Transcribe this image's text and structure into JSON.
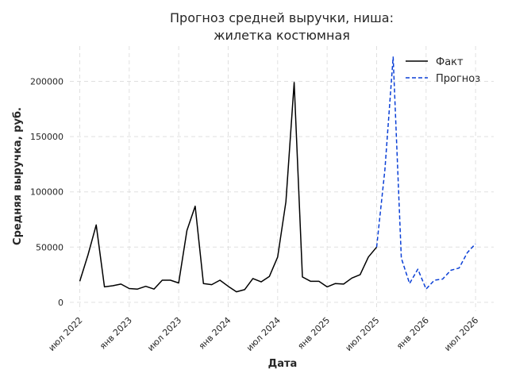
{
  "chart_data": {
    "type": "line",
    "title_lines": [
      "Прогноз средней выручки, ниша:",
      "жилетка костюмная"
    ],
    "xlabel": "Дата",
    "ylabel": "Средняя выручка, руб.",
    "x_ticks": [
      "июл 2022",
      "янв 2023",
      "июл 2023",
      "янв 2024",
      "июл 2024",
      "янв 2025",
      "июл 2025",
      "янв 2026",
      "июл 2026"
    ],
    "x_tick_months": [
      0,
      6,
      12,
      18,
      24,
      30,
      36,
      42,
      48
    ],
    "y_ticks": [
      "0",
      "50000",
      "100000",
      "150000",
      "200000"
    ],
    "y_tick_values": [
      0,
      50000,
      100000,
      150000,
      200000
    ],
    "xlim_months": [
      -1.2,
      50.2
    ],
    "ylim": [
      -8000,
      232000
    ],
    "grid": true,
    "legend_position": "top-right",
    "series": [
      {
        "name": "Факт",
        "color": "#000000",
        "style": "solid",
        "x": [
          "2022-07",
          "2022-08",
          "2022-09",
          "2022-10",
          "2022-11",
          "2022-12",
          "2023-01",
          "2023-02",
          "2023-03",
          "2023-04",
          "2023-05",
          "2023-06",
          "2023-07",
          "2023-08",
          "2023-09",
          "2023-10",
          "2023-11",
          "2023-12",
          "2024-01",
          "2024-02",
          "2024-03",
          "2024-04",
          "2024-05",
          "2024-06",
          "2024-07",
          "2024-08",
          "2024-09",
          "2024-10",
          "2024-11",
          "2024-12",
          "2025-01",
          "2025-02",
          "2025-03",
          "2025-04",
          "2025-05",
          "2025-06",
          "2025-07"
        ],
        "y": [
          19000,
          43000,
          70000,
          14000,
          15000,
          16500,
          12500,
          12000,
          14500,
          12000,
          20000,
          20000,
          17500,
          65000,
          87000,
          17000,
          16000,
          20000,
          14500,
          9500,
          11500,
          21500,
          18500,
          23500,
          41000,
          91000,
          199000,
          23000,
          19000,
          19000,
          14000,
          17000,
          16500,
          22000,
          25000,
          41000,
          50000
        ]
      },
      {
        "name": "Прогноз",
        "color": "#0a3fd6",
        "style": "dashed",
        "x": [
          "2025-07",
          "2025-08",
          "2025-09",
          "2025-10",
          "2025-11",
          "2025-12",
          "2026-01",
          "2026-02",
          "2026-03",
          "2026-04",
          "2026-05",
          "2026-06",
          "2026-07"
        ],
        "y": [
          50000,
          120000,
          222000,
          40000,
          17000,
          30000,
          12000,
          20000,
          21000,
          29000,
          31000,
          45000,
          53000
        ]
      }
    ]
  }
}
